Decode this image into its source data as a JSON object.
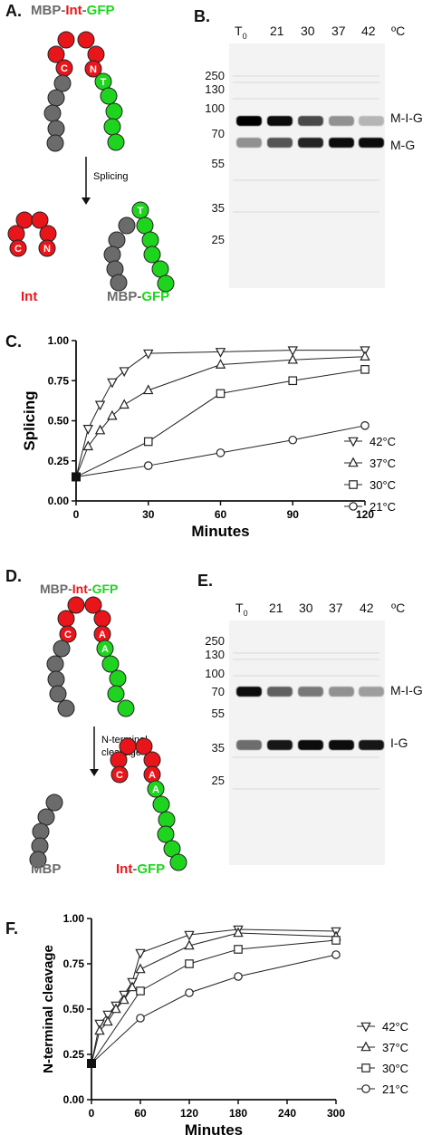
{
  "panels": {
    "a": {
      "letter": "A.",
      "title_parts": [
        "MBP",
        "-",
        "Int",
        "-",
        "GFP"
      ],
      "beads": {
        "c": "C",
        "n": "N",
        "t": "T"
      },
      "arrow_label": "Splicing",
      "int_label": "Int",
      "product_parts": [
        "MBP",
        "-",
        "GFP"
      ],
      "colors": {
        "mbp": "#6b6b6b",
        "int": "#e8161b",
        "gfp": "#1ed41e"
      }
    },
    "b": {
      "letter": "B.",
      "lanes": [
        "T",
        "21",
        "30",
        "37",
        "42"
      ],
      "t_subscript": "0",
      "unit": "ºC",
      "mw_markers": [
        "250",
        "130",
        "100",
        "70",
        "55",
        "35",
        "25"
      ],
      "bands": [
        "M-I-G",
        "M-G"
      ],
      "upper_intensity": [
        1.0,
        0.95,
        0.7,
        0.4,
        0.25
      ],
      "lower_intensity": [
        0.4,
        0.65,
        0.85,
        0.95,
        0.95
      ]
    },
    "d": {
      "letter": "D.",
      "title_parts": [
        "MBP",
        "-",
        "Int",
        "-",
        "GFP"
      ],
      "beads": {
        "c": "C",
        "a1": "A",
        "a2": "A"
      },
      "arrow_label_1": "N-terminal",
      "arrow_label_2": "cleavage",
      "mbp_label": "MBP",
      "product_parts": [
        "Int",
        "-",
        "GFP"
      ]
    },
    "e": {
      "letter": "E.",
      "lanes": [
        "T",
        "21",
        "30",
        "37",
        "42"
      ],
      "t_subscript": "0",
      "unit": "ºC",
      "mw_markers": [
        "250",
        "130",
        "100",
        "70",
        "55",
        "35",
        "25"
      ],
      "bands": [
        "M-I-G",
        "I-G"
      ],
      "upper_intensity": [
        0.95,
        0.6,
        0.5,
        0.4,
        0.35
      ],
      "lower_intensity": [
        0.55,
        0.9,
        0.95,
        0.95,
        0.9
      ]
    }
  },
  "chart_data": [
    {
      "panel_letter": "C.",
      "type": "line",
      "title": "",
      "xlabel": "Minutes",
      "ylabel": "Splicing",
      "xlim": [
        0,
        120
      ],
      "ylim": [
        0,
        1.0
      ],
      "xticks": [
        "0",
        "30",
        "60",
        "90",
        "120"
      ],
      "yticks": [
        "0.00",
        "0.25",
        "0.50",
        "0.75",
        "1.00"
      ],
      "legend_position": "right",
      "start_point": {
        "x": 0,
        "y": 0.15
      },
      "series": [
        {
          "name": "42°C",
          "marker": "triangle-down",
          "x": [
            0,
            5,
            10,
            15,
            20,
            30,
            60,
            90,
            120
          ],
          "y": [
            0.15,
            0.45,
            0.6,
            0.74,
            0.81,
            0.92,
            0.93,
            0.94,
            0.94
          ]
        },
        {
          "name": "37°C",
          "marker": "triangle-up",
          "x": [
            0,
            5,
            10,
            15,
            20,
            30,
            60,
            90,
            120
          ],
          "y": [
            0.15,
            0.34,
            0.44,
            0.53,
            0.6,
            0.69,
            0.85,
            0.88,
            0.9
          ]
        },
        {
          "name": "30°C",
          "marker": "square",
          "x": [
            0,
            30,
            60,
            90,
            120
          ],
          "y": [
            0.15,
            0.37,
            0.67,
            0.75,
            0.82
          ]
        },
        {
          "name": "21°C",
          "marker": "circle",
          "x": [
            0,
            30,
            60,
            90,
            120
          ],
          "y": [
            0.15,
            0.22,
            0.3,
            0.38,
            0.47
          ]
        }
      ]
    },
    {
      "panel_letter": "F.",
      "type": "line",
      "title": "",
      "xlabel": "Minutes",
      "ylabel": "N-terminal cleavage",
      "xlim": [
        0,
        300
      ],
      "ylim": [
        0,
        1.0
      ],
      "xticks": [
        "0",
        "60",
        "120",
        "180",
        "240",
        "300"
      ],
      "yticks": [
        "0.00",
        "0.25",
        "0.50",
        "0.75",
        "1.00"
      ],
      "legend_position": "right",
      "start_point": {
        "x": 0,
        "y": 0.2
      },
      "series": [
        {
          "name": "42°C",
          "marker": "triangle-down",
          "x": [
            0,
            10,
            20,
            30,
            40,
            50,
            60,
            120,
            180,
            300
          ],
          "y": [
            0.2,
            0.42,
            0.47,
            0.52,
            0.58,
            0.65,
            0.81,
            0.91,
            0.94,
            0.93
          ]
        },
        {
          "name": "37°C",
          "marker": "triangle-up",
          "x": [
            0,
            10,
            20,
            30,
            40,
            50,
            60,
            120,
            180,
            300
          ],
          "y": [
            0.2,
            0.38,
            0.43,
            0.5,
            0.55,
            0.62,
            0.72,
            0.85,
            0.92,
            0.9
          ]
        },
        {
          "name": "30°C",
          "marker": "square",
          "x": [
            0,
            60,
            120,
            180,
            300
          ],
          "y": [
            0.2,
            0.6,
            0.75,
            0.83,
            0.88
          ]
        },
        {
          "name": "21°C",
          "marker": "circle",
          "x": [
            0,
            60,
            120,
            180,
            300
          ],
          "y": [
            0.2,
            0.45,
            0.59,
            0.68,
            0.8
          ]
        }
      ]
    }
  ]
}
